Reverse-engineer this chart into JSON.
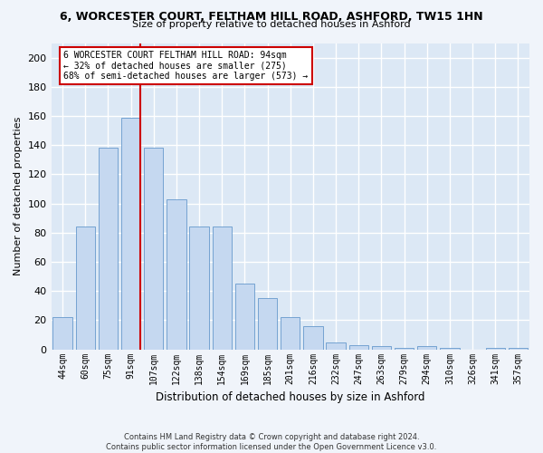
{
  "title": "6, WORCESTER COURT, FELTHAM HILL ROAD, ASHFORD, TW15 1HN",
  "subtitle": "Size of property relative to detached houses in Ashford",
  "xlabel": "Distribution of detached houses by size in Ashford",
  "ylabel": "Number of detached properties",
  "bar_labels": [
    "44sqm",
    "60sqm",
    "75sqm",
    "91sqm",
    "107sqm",
    "122sqm",
    "138sqm",
    "154sqm",
    "169sqm",
    "185sqm",
    "201sqm",
    "216sqm",
    "232sqm",
    "247sqm",
    "263sqm",
    "279sqm",
    "294sqm",
    "310sqm",
    "326sqm",
    "341sqm",
    "357sqm"
  ],
  "bar_values": [
    22,
    84,
    138,
    159,
    138,
    103,
    84,
    84,
    45,
    35,
    22,
    16,
    5,
    3,
    2,
    1,
    2,
    1,
    0,
    1,
    1
  ],
  "bar_color": "#c5d8f0",
  "bar_edgecolor": "#6699cc",
  "vline_x_idx": 3.43,
  "property_line_label": "6 WORCESTER COURT FELTHAM HILL ROAD: 94sqm",
  "annotation_line1": "← 32% of detached houses are smaller (275)",
  "annotation_line2": "68% of semi-detached houses are larger (573) →",
  "vline_color": "#cc0000",
  "annotation_box_edgecolor": "#cc0000",
  "ylim": [
    0,
    210
  ],
  "yticks": [
    0,
    20,
    40,
    60,
    80,
    100,
    120,
    140,
    160,
    180,
    200
  ],
  "footer_line1": "Contains HM Land Registry data © Crown copyright and database right 2024.",
  "footer_line2": "Contains public sector information licensed under the Open Government Licence v3.0.",
  "fig_bg_color": "#f0f4fa",
  "plot_bg_color": "#dce8f5"
}
